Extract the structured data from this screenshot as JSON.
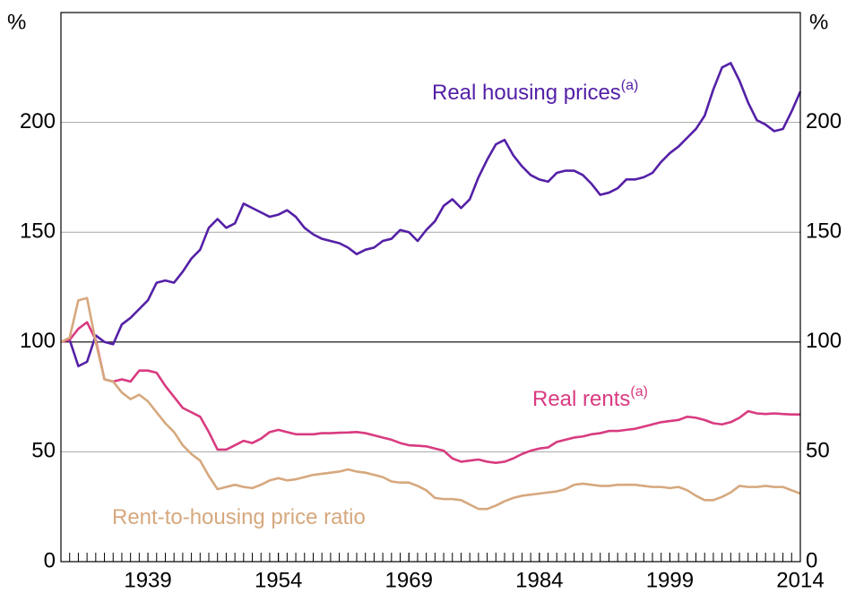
{
  "chart_data": {
    "type": "line",
    "y_unit": "%",
    "y2_unit": "%",
    "reference_line": 100,
    "x": [
      1929,
      1930,
      1931,
      1932,
      1933,
      1934,
      1935,
      1936,
      1937,
      1938,
      1939,
      1940,
      1941,
      1942,
      1943,
      1944,
      1945,
      1946,
      1947,
      1948,
      1949,
      1950,
      1951,
      1952,
      1953,
      1954,
      1955,
      1956,
      1957,
      1958,
      1959,
      1960,
      1961,
      1962,
      1963,
      1964,
      1965,
      1966,
      1967,
      1968,
      1969,
      1970,
      1971,
      1972,
      1973,
      1974,
      1975,
      1976,
      1977,
      1978,
      1979,
      1980,
      1981,
      1982,
      1983,
      1984,
      1985,
      1986,
      1987,
      1988,
      1989,
      1990,
      1991,
      1992,
      1993,
      1994,
      1995,
      1996,
      1997,
      1998,
      1999,
      2000,
      2001,
      2002,
      2003,
      2004,
      2005,
      2006,
      2007,
      2008,
      2009,
      2010,
      2011,
      2012,
      2013,
      2014
    ],
    "xlim": [
      1929,
      2014
    ],
    "xticks": [
      1939,
      1954,
      1969,
      1984,
      1999,
      2014
    ],
    "ylim": [
      0,
      250
    ],
    "yticks": [
      0,
      50,
      100,
      150,
      200
    ],
    "y2lim": [
      0,
      250
    ],
    "y2ticks": [
      0,
      50,
      100,
      150,
      200
    ],
    "grid": true,
    "series": [
      {
        "name": "Real housing prices",
        "name_sup": "(a)",
        "color": "#5420a6",
        "values": [
          100,
          101,
          89,
          91,
          103,
          100,
          99,
          108,
          111,
          115,
          119,
          127,
          128,
          127,
          132,
          138,
          142,
          152,
          156,
          152,
          154,
          163,
          161,
          159,
          157,
          158,
          160,
          157,
          152,
          149,
          147,
          146,
          145,
          143,
          140,
          142,
          143,
          146,
          147,
          151,
          150,
          146,
          151,
          155,
          162,
          165,
          161,
          165,
          175,
          183,
          190,
          192,
          185,
          180,
          176,
          174,
          173,
          177,
          178,
          178,
          176,
          172,
          167,
          168,
          170,
          174,
          174,
          175,
          177,
          182,
          186,
          189,
          193,
          197,
          203,
          215,
          225,
          227,
          219,
          209,
          201,
          199,
          196,
          197,
          205,
          214
        ]
      },
      {
        "name": "Real rents",
        "name_sup": "(a)",
        "color": "#d83b80",
        "values": [
          100,
          101,
          106,
          109,
          101,
          83,
          82,
          83,
          82,
          87,
          87,
          86,
          80,
          75,
          70,
          68,
          66,
          59,
          51,
          51,
          53,
          55,
          54,
          56,
          59,
          60,
          59,
          58,
          58,
          58,
          58.5,
          58.5,
          58.7,
          58.8,
          59,
          58.5,
          57.5,
          56.5,
          55.5,
          54,
          53,
          52.8,
          52.5,
          51.5,
          50.5,
          47,
          45.5,
          46,
          46.5,
          45.5,
          45,
          45.5,
          47,
          49,
          50.5,
          51.5,
          52,
          54.5,
          55.5,
          56.5,
          57,
          58,
          58.5,
          59.5,
          59.5,
          60,
          60.5,
          61.5,
          62.5,
          63.5,
          64,
          64.5,
          66,
          65.5,
          64.5,
          63,
          62.5,
          63.5,
          65.5,
          68.5,
          67.5,
          67.2,
          67.5,
          67.2,
          67,
          67
        ]
      },
      {
        "name": "Rent-to-housing price ratio",
        "color": "#d6a87e",
        "values": [
          100,
          102,
          119,
          120,
          100,
          83,
          82,
          77,
          74,
          76,
          73,
          68,
          63,
          59,
          53,
          49,
          46,
          39,
          33,
          34,
          35,
          34,
          33.5,
          35,
          37,
          38,
          37,
          37.5,
          38.5,
          39.5,
          40,
          40.5,
          41,
          42,
          41,
          40.5,
          39.5,
          38.5,
          36.5,
          36,
          36,
          34.5,
          32.5,
          29,
          28.5,
          28.5,
          28,
          26,
          24,
          24,
          25.5,
          27.5,
          29,
          30,
          30.5,
          31,
          31.5,
          32,
          33,
          35,
          35.5,
          35,
          34.5,
          34.5,
          35,
          35,
          35,
          34.5,
          34,
          34,
          33.5,
          34,
          32.5,
          30,
          28,
          28,
          29.5,
          31.5,
          34.5,
          34,
          34,
          34.5,
          34,
          34,
          32.5,
          31
        ]
      }
    ]
  }
}
